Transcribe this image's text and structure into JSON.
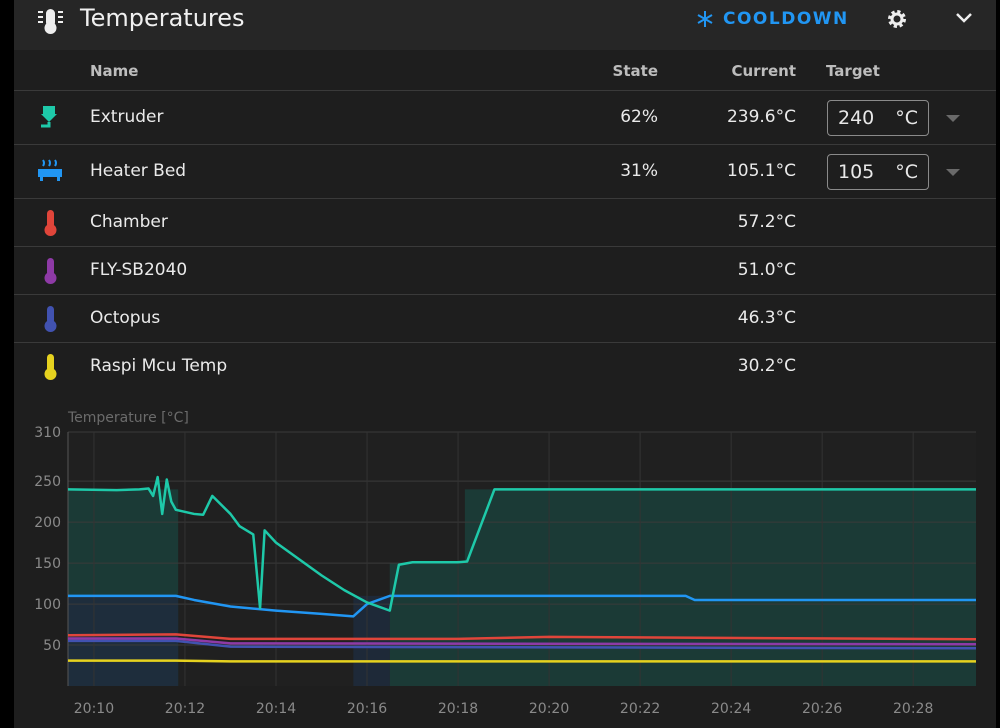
{
  "header": {
    "title": "Temperatures",
    "action": "COOLDOWN"
  },
  "table": {
    "columns": [
      "Name",
      "State",
      "Current",
      "Target"
    ],
    "rows": [
      {
        "name": "Extruder",
        "state": "62%",
        "current": "239.6°C",
        "target": "240",
        "target_unit": "°C"
      },
      {
        "name": "Heater Bed",
        "state": "31%",
        "current": "105.1°C",
        "target": "105",
        "target_unit": "°C"
      },
      {
        "name": "Chamber",
        "current": "57.2°C"
      },
      {
        "name": "FLY-SB2040",
        "current": "51.0°C"
      },
      {
        "name": "Octopus",
        "current": "46.3°C"
      },
      {
        "name": "Raspi Mcu Temp",
        "current": "30.2°C"
      }
    ]
  },
  "chart_data": {
    "type": "line",
    "y_label": "Temperature [°C]",
    "xlim": [
      1209.43,
      1229.38
    ],
    "xticks": [
      {
        "value": 1210,
        "label": "20:10"
      },
      {
        "value": 1212,
        "label": "20:12"
      },
      {
        "value": 1214,
        "label": "20:14"
      },
      {
        "value": 1216,
        "label": "20:16"
      },
      {
        "value": 1218,
        "label": "20:18"
      },
      {
        "value": 1220,
        "label": "20:20"
      },
      {
        "value": 1222,
        "label": "20:22"
      },
      {
        "value": 1224,
        "label": "20:24"
      },
      {
        "value": 1226,
        "label": "20:26"
      },
      {
        "value": 1228,
        "label": "20:28"
      }
    ],
    "ylim": [
      0,
      310
    ],
    "yticks": [
      50,
      100,
      150,
      200,
      250,
      310
    ],
    "grid": true,
    "targets": [
      {
        "color": "#1b3f3b",
        "x": [
          1209.43,
          1211.85,
          1211.85,
          1216.5,
          1216.5,
          1218.15,
          1218.15,
          1229.38
        ],
        "values": [
          240,
          240,
          0,
          0,
          150,
          150,
          240,
          240
        ]
      },
      {
        "color": "#1f2b3d",
        "x": [
          1209.43,
          1211.85,
          1211.85,
          1215.7,
          1215.7,
          1216.5
        ],
        "values": [
          110,
          110,
          0,
          0,
          110,
          110
        ]
      }
    ],
    "series": [
      {
        "color": "#1ec9a9",
        "x": [
          1209.43,
          1210.5,
          1211,
          1211.2,
          1211.3,
          1211.4,
          1211.5,
          1211.6,
          1211.7,
          1211.8,
          1212.2,
          1212.4,
          1212.6,
          1213,
          1213.2,
          1213.5,
          1213.65,
          1213.75,
          1214,
          1214.5,
          1215,
          1215.5,
          1216,
          1216.5,
          1216.7,
          1217,
          1218,
          1218.2,
          1218.8,
          1229.38
        ],
        "values": [
          240,
          239,
          240,
          241,
          232,
          255,
          210,
          252,
          225,
          215,
          210,
          209,
          232,
          210,
          195,
          185,
          95,
          190,
          175,
          155,
          135,
          117,
          102,
          92,
          148,
          151,
          151,
          152,
          240,
          240
        ]
      },
      {
        "color": "#2196f3",
        "x": [
          1209.43,
          1211.8,
          1212.2,
          1213,
          1214,
          1215,
          1215.7,
          1216,
          1216.5,
          1223,
          1223.2,
          1229.38
        ],
        "values": [
          110,
          110,
          105,
          97,
          92,
          88,
          85,
          100,
          110,
          110,
          105,
          105
        ]
      },
      {
        "color": "#e0453a",
        "x": [
          1209.43,
          1211.8,
          1213,
          1218,
          1220,
          1229.38
        ],
        "values": [
          62,
          63,
          57.5,
          57.5,
          60,
          57
        ]
      },
      {
        "color": "#8e3aa6",
        "x": [
          1209.43,
          1211.8,
          1213,
          1229.38
        ],
        "values": [
          58,
          58,
          52,
          51
        ]
      },
      {
        "color": "#4152b0",
        "x": [
          1209.43,
          1211.8,
          1213,
          1229.38
        ],
        "values": [
          55,
          55,
          48,
          46
        ]
      },
      {
        "color": "#e6d21f",
        "x": [
          1209.43,
          1211.8,
          1213,
          1229.38
        ],
        "values": [
          31,
          31,
          30,
          30
        ]
      }
    ]
  }
}
